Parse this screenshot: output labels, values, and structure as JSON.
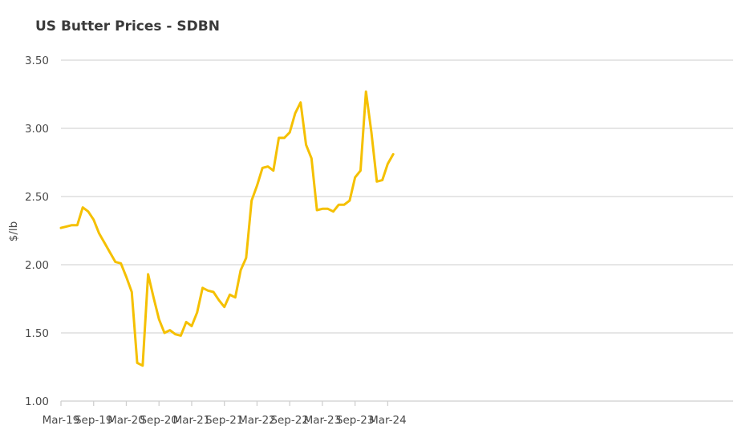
{
  "chart_data": {
    "type": "line",
    "title": "US Butter Prices - SDBN",
    "xlabel": "",
    "ylabel": "$/lb",
    "ylim": [
      1.0,
      3.5
    ],
    "yticks": [
      "1.00",
      "1.50",
      "2.00",
      "2.50",
      "3.00",
      "3.50"
    ],
    "xticks": [
      "Mar-19",
      "Sep-19",
      "Mar-20",
      "Sep-20",
      "Mar-21",
      "Sep-21",
      "Mar-22",
      "Sep-22",
      "Mar-23",
      "Sep-23",
      "Mar-24"
    ],
    "grid": true,
    "legend": "none",
    "line_color": "#F5C000",
    "x": [
      "Mar-19",
      "Apr-19",
      "May-19",
      "Jun-19",
      "Jul-19",
      "Aug-19",
      "Sep-19",
      "Oct-19",
      "Nov-19",
      "Dec-19",
      "Jan-20",
      "Feb-20",
      "Mar-20",
      "Apr-20",
      "May-20",
      "Jun-20",
      "Jul-20",
      "Aug-20",
      "Sep-20",
      "Oct-20",
      "Nov-20",
      "Dec-20",
      "Jan-21",
      "Feb-21",
      "Mar-21",
      "Apr-21",
      "May-21",
      "Jun-21",
      "Jul-21",
      "Aug-21",
      "Sep-21",
      "Oct-21",
      "Nov-21",
      "Dec-21",
      "Jan-22",
      "Feb-22",
      "Mar-22",
      "Apr-22",
      "May-22",
      "Jun-22",
      "Jul-22",
      "Aug-22",
      "Sep-22",
      "Oct-22",
      "Nov-22",
      "Dec-22",
      "Jan-23",
      "Feb-23",
      "Mar-23",
      "Apr-23",
      "May-23",
      "Jun-23",
      "Jul-23",
      "Aug-23",
      "Sep-23",
      "Oct-23",
      "Nov-23",
      "Dec-23",
      "Jan-24",
      "Feb-24",
      "Mar-24",
      "Apr-24"
    ],
    "series": [
      {
        "values": [
          2.27,
          2.28,
          2.29,
          2.29,
          2.42,
          2.39,
          2.33,
          2.23,
          2.16,
          2.09,
          2.02,
          2.01,
          1.91,
          1.8,
          1.28,
          1.26,
          1.93,
          1.76,
          1.6,
          1.5,
          1.52,
          1.49,
          1.48,
          1.58,
          1.55,
          1.65,
          1.83,
          1.81,
          1.8,
          1.74,
          1.69,
          1.78,
          1.76,
          1.96,
          2.05,
          2.47,
          2.58,
          2.71,
          2.72,
          2.69,
          2.93,
          2.93,
          2.97,
          3.11,
          3.19,
          2.88,
          2.78,
          2.4,
          2.41,
          2.41,
          2.39,
          2.44,
          2.44,
          2.47,
          2.64,
          2.69,
          3.27,
          2.97,
          2.61,
          2.62,
          2.74,
          2.81
        ]
      }
    ]
  }
}
